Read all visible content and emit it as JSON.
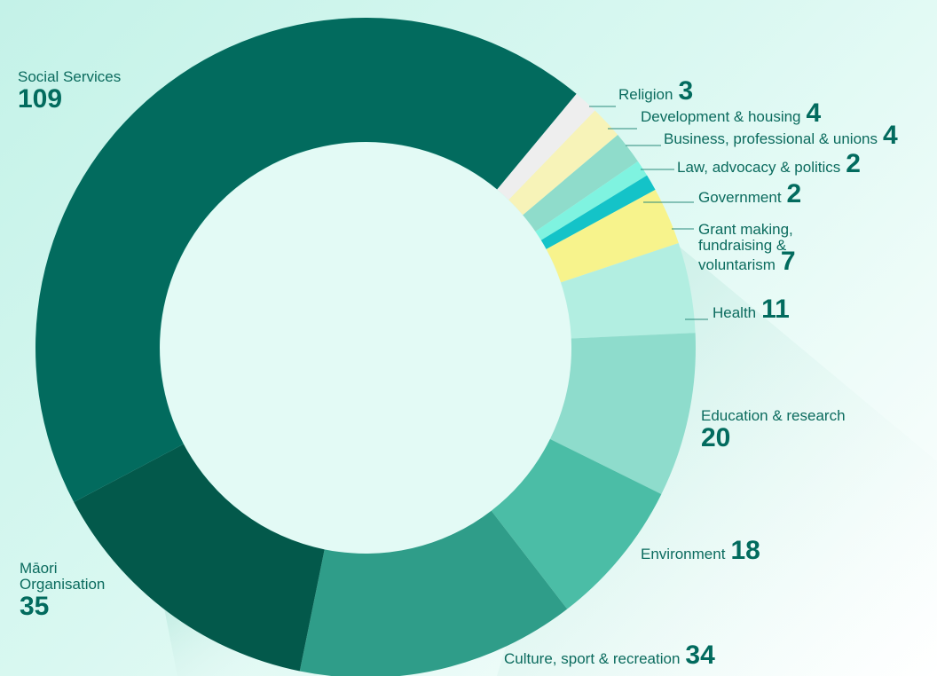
{
  "chart_data": {
    "type": "donut",
    "categories": [
      "Religion",
      "Development & housing",
      "Business, professional & unions",
      "Law, advocacy & politics",
      "Government",
      "Grant making, fundraising & voluntarism",
      "Health",
      "Education & research",
      "Environment",
      "Culture, sport & recreation",
      "Māori Organisation",
      "Social Services"
    ],
    "values": [
      3,
      4,
      4,
      2,
      2,
      7,
      11,
      20,
      18,
      34,
      35,
      109
    ],
    "colors": [
      "#eeeeee",
      "#f7f3b8",
      "#8fdccb",
      "#7ff3e0",
      "#14c3c8",
      "#f7f38c",
      "#b2eee1",
      "#8edccc",
      "#4bbda6",
      "#2f9d89",
      "#03594b",
      "#026b5e"
    ]
  }
}
